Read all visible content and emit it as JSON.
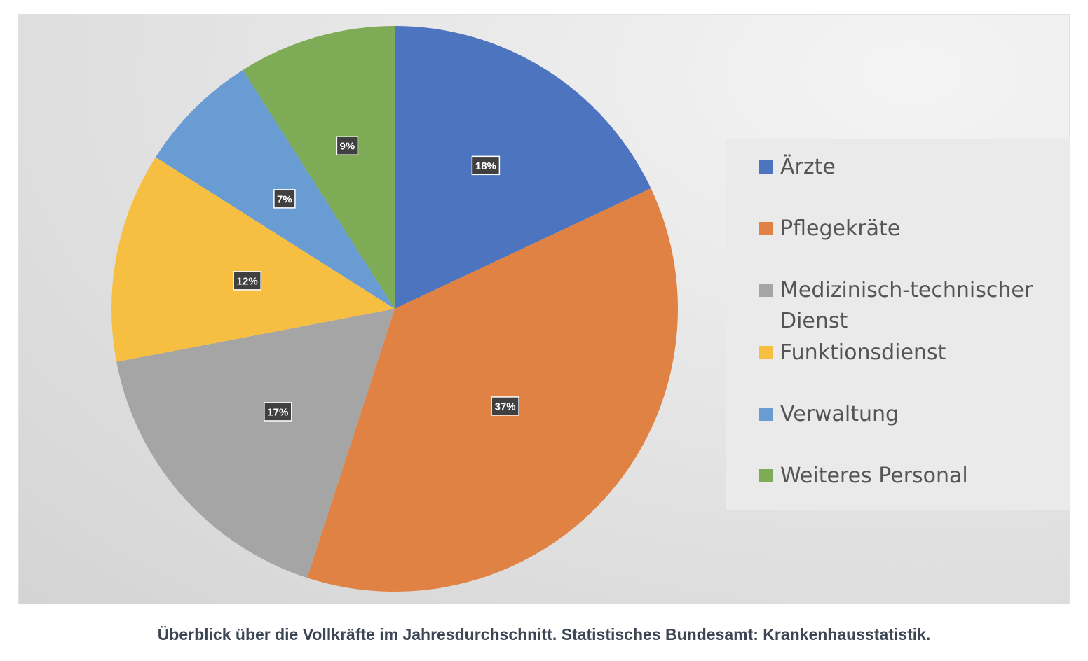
{
  "chart_data": {
    "type": "pie",
    "title": "",
    "categories": [
      "Ärzte",
      "Pflegekräte",
      "Medizinisch-technischer Dienst",
      "Funktionsdienst",
      "Verwaltung",
      "Weiteres Personal"
    ],
    "values": [
      18,
      37,
      17,
      12,
      7,
      9
    ],
    "data_labels": [
      "18%",
      "37%",
      "17%",
      "12%",
      "7%",
      "9%"
    ],
    "colors": [
      "#4d74be",
      "#e08243",
      "#a5a5a5",
      "#f6bf41",
      "#699cd3",
      "#7eab55"
    ],
    "start_angle": "12 o'clock",
    "direction": "clockwise",
    "legend_position": "right"
  },
  "legend": {
    "items": [
      {
        "label": "Ärzte",
        "color": "#4d74be"
      },
      {
        "label": "Pflegekräte",
        "color": "#e08243"
      },
      {
        "label": "Medizinisch-technischer Dienst",
        "color": "#a5a5a5"
      },
      {
        "label": "Funktionsdienst",
        "color": "#f6bf41"
      },
      {
        "label": "Verwaltung",
        "color": "#699cd3"
      },
      {
        "label": "Weiteres Personal",
        "color": "#7eab55"
      }
    ]
  },
  "caption": "Überblick über die Vollkräfte im Jahresdurchschnitt. Statistisches Bundesamt: Krankenhausstatistik."
}
